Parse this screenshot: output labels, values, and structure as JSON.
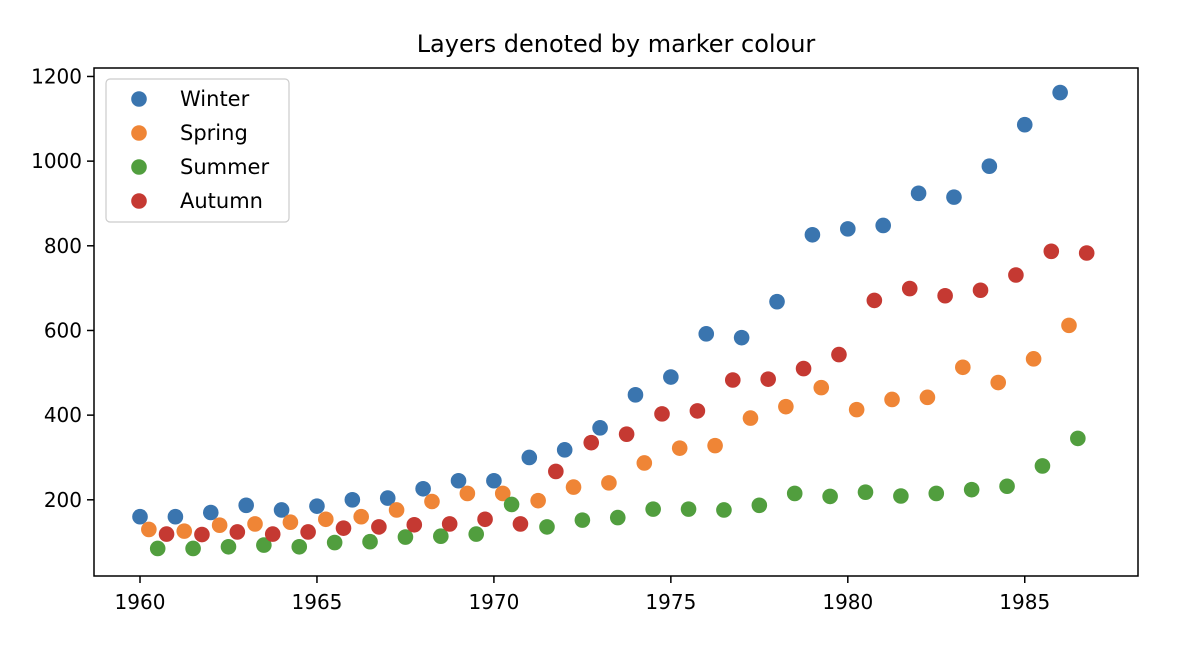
{
  "chart_data": {
    "type": "scatter",
    "title": "Layers denoted by marker colour",
    "xlabel": "",
    "ylabel": "",
    "xlim": [
      1958.7,
      1988.2
    ],
    "ylim": [
      20,
      1220
    ],
    "x_ticks": [
      1960,
      1965,
      1970,
      1975,
      1980,
      1985
    ],
    "y_ticks": [
      200,
      400,
      600,
      800,
      1000,
      1200
    ],
    "grid": false,
    "legend": "top-left",
    "series": [
      {
        "name": "Winter",
        "color": "#3a75af",
        "points": [
          [
            1960.0,
            160
          ],
          [
            1961.0,
            160
          ],
          [
            1962.0,
            170
          ],
          [
            1963.0,
            187
          ],
          [
            1964.0,
            176
          ],
          [
            1965.0,
            185
          ],
          [
            1966.0,
            200
          ],
          [
            1967.0,
            204
          ],
          [
            1968.0,
            226
          ],
          [
            1969.0,
            245
          ],
          [
            1970.0,
            245
          ],
          [
            1971.0,
            300
          ],
          [
            1972.0,
            318
          ],
          [
            1973.0,
            370
          ],
          [
            1974.0,
            448
          ],
          [
            1975.0,
            490
          ],
          [
            1976.0,
            592
          ],
          [
            1977.0,
            583
          ],
          [
            1978.0,
            668
          ],
          [
            1979.0,
            826
          ],
          [
            1980.0,
            840
          ],
          [
            1981.0,
            848
          ],
          [
            1982.0,
            924
          ],
          [
            1983.0,
            915
          ],
          [
            1984.0,
            988
          ],
          [
            1985.0,
            1086
          ],
          [
            1986.0,
            1162
          ]
        ]
      },
      {
        "name": "Spring",
        "color": "#ef8536",
        "points": [
          [
            1960.25,
            130
          ],
          [
            1961.25,
            126
          ],
          [
            1962.25,
            140
          ],
          [
            1963.25,
            143
          ],
          [
            1964.25,
            147
          ],
          [
            1965.25,
            154
          ],
          [
            1966.25,
            160
          ],
          [
            1967.25,
            176
          ],
          [
            1968.25,
            196
          ],
          [
            1969.25,
            215
          ],
          [
            1970.25,
            215
          ],
          [
            1971.25,
            198
          ],
          [
            1972.25,
            230
          ],
          [
            1973.25,
            240
          ],
          [
            1974.25,
            287
          ],
          [
            1975.25,
            322
          ],
          [
            1976.25,
            328
          ],
          [
            1977.25,
            393
          ],
          [
            1978.25,
            420
          ],
          [
            1979.25,
            465
          ],
          [
            1980.25,
            413
          ],
          [
            1981.25,
            437
          ],
          [
            1982.25,
            442
          ],
          [
            1983.25,
            513
          ],
          [
            1984.25,
            477
          ],
          [
            1985.25,
            533
          ],
          [
            1986.25,
            612
          ]
        ]
      },
      {
        "name": "Summer",
        "color": "#519e3e",
        "points": [
          [
            1960.5,
            85
          ],
          [
            1961.5,
            85
          ],
          [
            1962.5,
            89
          ],
          [
            1963.5,
            93
          ],
          [
            1964.5,
            89
          ],
          [
            1965.5,
            99
          ],
          [
            1966.5,
            101
          ],
          [
            1967.5,
            112
          ],
          [
            1968.5,
            114
          ],
          [
            1969.5,
            119
          ],
          [
            1970.5,
            189
          ],
          [
            1971.5,
            136
          ],
          [
            1972.5,
            152
          ],
          [
            1973.5,
            158
          ],
          [
            1974.5,
            178
          ],
          [
            1975.5,
            178
          ],
          [
            1976.5,
            176
          ],
          [
            1977.5,
            187
          ],
          [
            1978.5,
            215
          ],
          [
            1979.5,
            208
          ],
          [
            1980.5,
            218
          ],
          [
            1981.5,
            209
          ],
          [
            1982.5,
            215
          ],
          [
            1983.5,
            224
          ],
          [
            1984.5,
            232
          ],
          [
            1985.5,
            280
          ],
          [
            1986.5,
            345
          ]
        ]
      },
      {
        "name": "Autumn",
        "color": "#c53932",
        "points": [
          [
            1960.75,
            119
          ],
          [
            1961.75,
            118
          ],
          [
            1962.75,
            124
          ],
          [
            1963.75,
            119
          ],
          [
            1964.75,
            124
          ],
          [
            1965.75,
            133
          ],
          [
            1966.75,
            136
          ],
          [
            1967.75,
            141
          ],
          [
            1968.75,
            143
          ],
          [
            1969.75,
            154
          ],
          [
            1970.75,
            143
          ],
          [
            1971.75,
            267
          ],
          [
            1972.75,
            335
          ],
          [
            1973.75,
            355
          ],
          [
            1974.75,
            403
          ],
          [
            1975.75,
            410
          ],
          [
            1976.75,
            483
          ],
          [
            1977.75,
            485
          ],
          [
            1978.75,
            510
          ],
          [
            1979.75,
            543
          ],
          [
            1980.75,
            671
          ],
          [
            1981.75,
            699
          ],
          [
            1982.75,
            682
          ],
          [
            1983.75,
            695
          ],
          [
            1984.75,
            731
          ],
          [
            1985.75,
            787
          ],
          [
            1986.75,
            783
          ]
        ]
      }
    ]
  }
}
